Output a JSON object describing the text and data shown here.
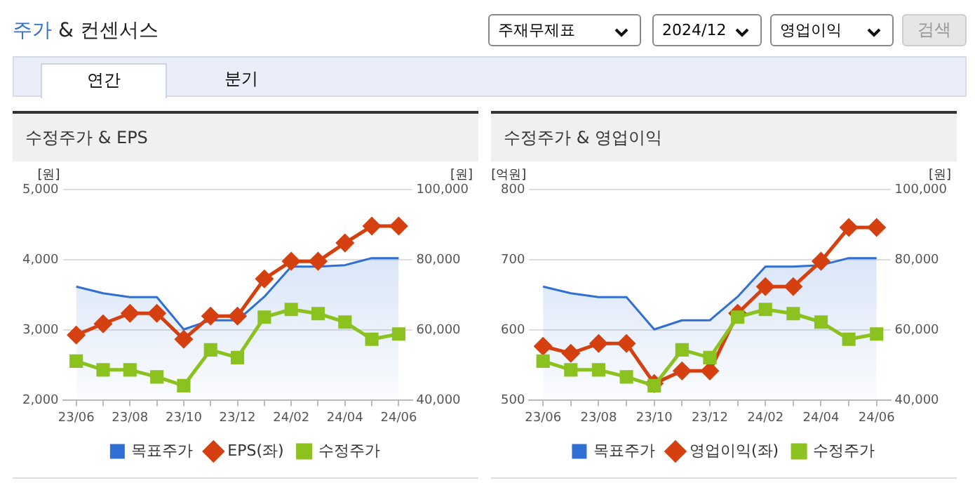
{
  "chart_data": [
    {
      "type": "other",
      "title": "주가 & 컨센서스",
      "annotations": [
        "주재무제표",
        "2024/12",
        "영업이익",
        "검색",
        "연간",
        "분기"
      ]
    },
    {
      "type": "line",
      "title": "수정주가 & EPS",
      "categories": [
        "23/06",
        null,
        "23/08",
        null,
        "23/10",
        null,
        "23/12",
        null,
        "24/02",
        null,
        "24/04",
        null,
        "24/06"
      ],
      "ylabel": "[원]",
      "y2label": "[원]",
      "ylim": [
        2000,
        5000
      ],
      "yticks": [
        {
          "value": 2000,
          "label": "2,000"
        },
        {
          "value": 3000,
          "label": "3,000"
        },
        {
          "value": 4000,
          "label": "4,000"
        },
        {
          "value": 5000,
          "label": "5,000"
        }
      ],
      "y2lim": [
        40000,
        100000
      ],
      "y2ticks": [
        {
          "value": 40000,
          "label": "40,000"
        },
        {
          "value": 60000,
          "label": "60,000"
        },
        {
          "value": 80000,
          "label": "80,000"
        },
        {
          "value": 100000,
          "label": "100,000"
        }
      ],
      "grid": "y",
      "legend": "bottom",
      "series": [
        {
          "name": "목표주가",
          "type": "area",
          "axis": "y2",
          "color": "#2f6fd6",
          "marker": "none",
          "values": [
            72400,
            70500,
            69400,
            69400,
            60200,
            62800,
            62800,
            69500,
            78100,
            78100,
            78500,
            80500,
            80500
          ]
        },
        {
          "name": "EPS(좌)",
          "type": "line",
          "color": "#d4400f",
          "marker": "diamond",
          "values": [
            2930,
            3090,
            3240,
            3240,
            2870,
            3200,
            3200,
            3730,
            3980,
            3980,
            4240,
            4480,
            4480
          ]
        },
        {
          "name": "수정주가",
          "type": "line",
          "axis": "y2",
          "color": "#8cc21f",
          "marker": "square",
          "values": [
            51200,
            48700,
            48700,
            46700,
            44200,
            54400,
            52200,
            63700,
            65900,
            64700,
            62300,
            57400,
            58900
          ]
        }
      ]
    },
    {
      "type": "line",
      "title": "수정주가 & 영업이익",
      "categories": [
        "23/06",
        null,
        "23/08",
        null,
        "23/10",
        null,
        "23/12",
        null,
        "24/02",
        null,
        "24/04",
        null,
        "24/06"
      ],
      "ylabel": "[억원]",
      "y2label": "[원]",
      "ylim": [
        500,
        800
      ],
      "yticks": [
        500,
        600,
        700,
        800
      ],
      "y2lim": [
        40000,
        100000
      ],
      "y2ticks": [
        {
          "value": 40000,
          "label": "40,000"
        },
        {
          "value": 60000,
          "label": "60,000"
        },
        {
          "value": 80000,
          "label": "80,000"
        },
        {
          "value": 100000,
          "label": "100,000"
        }
      ],
      "grid": "y",
      "legend": "bottom",
      "series": [
        {
          "name": "목표주가",
          "type": "area",
          "axis": "y2",
          "color": "#2f6fd6",
          "marker": "none",
          "values": [
            72400,
            70500,
            69400,
            69400,
            60200,
            62800,
            62800,
            69500,
            78100,
            78100,
            78500,
            80500,
            80500
          ]
        },
        {
          "name": "영업이익(좌)",
          "type": "line",
          "color": "#d4400f",
          "marker": "diamond",
          "values": [
            577,
            567,
            581,
            581,
            524,
            542,
            542,
            624,
            662,
            662,
            698,
            746,
            746
          ]
        },
        {
          "name": "수정주가",
          "type": "line",
          "axis": "y2",
          "color": "#8cc21f",
          "marker": "square",
          "values": [
            51200,
            48700,
            48700,
            46700,
            44200,
            54400,
            52200,
            63700,
            65900,
            64700,
            62300,
            57400,
            58900
          ]
        }
      ]
    }
  ]
}
